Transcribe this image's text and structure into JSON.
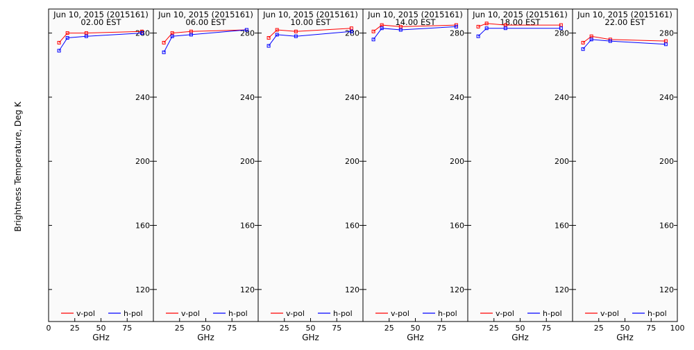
{
  "chart_data": {
    "type": "line",
    "ylabel": "Brightness Temperature, Deg K",
    "xlabel": "GHz",
    "ylim": [
      100,
      295
    ],
    "yticks": [
      120,
      160,
      200,
      240,
      280
    ],
    "xlim": [
      0,
      100
    ],
    "xticks": [
      0,
      25,
      50,
      75,
      100
    ],
    "grid": false,
    "legend_placement": "bottom",
    "x": [
      10,
      18,
      36,
      89
    ],
    "colors": {
      "v-pol": "#ff0000",
      "h-pol": "#0000ff",
      "background": "#fafafa"
    },
    "panels": [
      {
        "title": "Jun 10, 2015 (2015161)",
        "subtitle": "02.00 EST",
        "series": [
          {
            "name": "v-pol",
            "values": [
              274,
              280,
              280,
              281
            ]
          },
          {
            "name": "h-pol",
            "values": [
              269,
              277,
              278,
              280
            ]
          }
        ]
      },
      {
        "title": "Jun 10, 2015 (2015161)",
        "subtitle": "06.00 EST",
        "series": [
          {
            "name": "v-pol",
            "values": [
              274,
              280,
              281,
              282
            ]
          },
          {
            "name": "h-pol",
            "values": [
              268,
              278,
              279,
              282
            ]
          }
        ]
      },
      {
        "title": "Jun 10, 2015 (2015161)",
        "subtitle": "10.00 EST",
        "series": [
          {
            "name": "v-pol",
            "values": [
              277,
              282,
              281,
              283
            ]
          },
          {
            "name": "h-pol",
            "values": [
              272,
              279,
              278,
              281
            ]
          }
        ]
      },
      {
        "title": "Jun 10, 2015 (2015161)",
        "subtitle": "14.00 EST",
        "series": [
          {
            "name": "v-pol",
            "values": [
              281,
              285,
              284,
              285
            ]
          },
          {
            "name": "h-pol",
            "values": [
              276,
              283,
              282,
              284
            ]
          }
        ]
      },
      {
        "title": "Jun 10, 2015 (2015161)",
        "subtitle": "18.00 EST",
        "series": [
          {
            "name": "v-pol",
            "values": [
              284,
              286,
              285,
              285
            ]
          },
          {
            "name": "h-pol",
            "values": [
              278,
              283,
              283,
              283
            ]
          }
        ]
      },
      {
        "title": "Jun 10, 2015 (2015161)",
        "subtitle": "22.00 EST",
        "series": [
          {
            "name": "v-pol",
            "values": [
              274,
              278,
              276,
              275
            ]
          },
          {
            "name": "h-pol",
            "values": [
              270,
              276,
              275,
              273
            ]
          }
        ]
      }
    ]
  }
}
